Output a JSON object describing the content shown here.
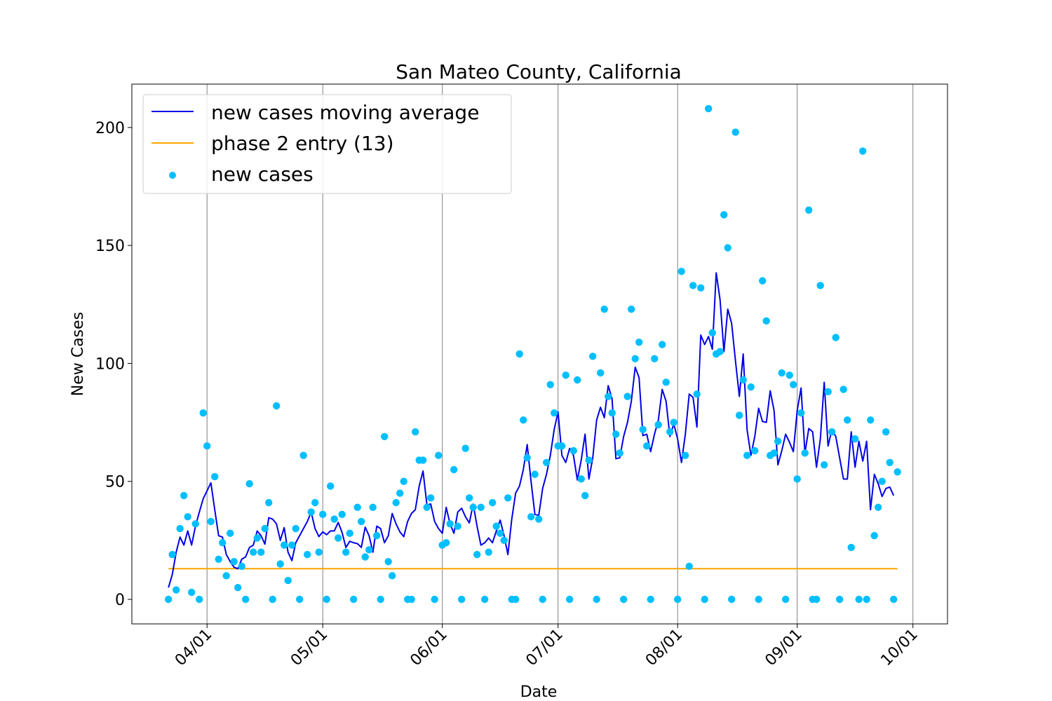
{
  "chart_data": {
    "type": "line",
    "title": "San Mateo County, California",
    "xlabel": "Date",
    "ylabel": "New Cases",
    "x_start": "2020-03-22",
    "ylim": [
      -10,
      218
    ],
    "yticks": [
      0,
      50,
      100,
      150,
      200
    ],
    "xticks": [
      {
        "label": "04/01",
        "date": "2020-04-01"
      },
      {
        "label": "05/01",
        "date": "2020-05-01"
      },
      {
        "label": "06/01",
        "date": "2020-06-01"
      },
      {
        "label": "07/01",
        "date": "2020-07-01"
      },
      {
        "label": "08/01",
        "date": "2020-08-01"
      },
      {
        "label": "09/01",
        "date": "2020-09-01"
      },
      {
        "label": "10/01",
        "date": "2020-10-01"
      }
    ],
    "grid": "vertical lines at x ticks",
    "legend": {
      "position": "upper-left",
      "entries": [
        "new cases moving average",
        "phase 2 entry (13)",
        "new cases"
      ]
    },
    "series": [
      {
        "name": "new cases",
        "kind": "scatter",
        "color": "#00bfff",
        "values": [
          0,
          19,
          4,
          30,
          44,
          35,
          3,
          32,
          0,
          79,
          65,
          33,
          52,
          17,
          24,
          10,
          28,
          16,
          5,
          14,
          0,
          49,
          20,
          26,
          20,
          30,
          41,
          0,
          82,
          15,
          23,
          8,
          23,
          30,
          0,
          61,
          19,
          37,
          41,
          20,
          36,
          0,
          48,
          34,
          26,
          36,
          20,
          28,
          0,
          39,
          33,
          18,
          21,
          39,
          27,
          0,
          69,
          16,
          10,
          41,
          45,
          50,
          0,
          0,
          71,
          59,
          59,
          39,
          43,
          0,
          61,
          23,
          24,
          32,
          55,
          31,
          0,
          64,
          43,
          39,
          19,
          39,
          0,
          20,
          41,
          31,
          28,
          25,
          43,
          0,
          0,
          104,
          76,
          60,
          35,
          53,
          34,
          0,
          58,
          91,
          79,
          65,
          65,
          95,
          0,
          63,
          93,
          51,
          44,
          59,
          103,
          0,
          96,
          123,
          86,
          79,
          70,
          62,
          0,
          86,
          123,
          102,
          109,
          72,
          65,
          0,
          102,
          74,
          108,
          92,
          71,
          75,
          0,
          139,
          61,
          14,
          133,
          87,
          132,
          0,
          208,
          113,
          104,
          105,
          163,
          149,
          0,
          198,
          78,
          93,
          61,
          90,
          63,
          0,
          135,
          118,
          61,
          62,
          67,
          96,
          0,
          95,
          91,
          51,
          79,
          62,
          165,
          0,
          0,
          133,
          57,
          88,
          71,
          111,
          0,
          89,
          76,
          22,
          68,
          0,
          190,
          0,
          76,
          27,
          39,
          50,
          71,
          58,
          0,
          54
        ]
      },
      {
        "name": "new cases moving average",
        "kind": "line",
        "color": "#0000e6",
        "values": [
          5,
          10.6,
          20,
          26.4,
          23,
          29,
          23,
          31,
          37,
          42.6,
          46,
          49.4,
          38,
          27,
          26.4,
          19,
          16,
          13.6,
          13,
          17,
          18,
          22,
          23,
          29,
          27,
          23.4,
          34.6,
          34,
          32,
          25,
          30.4,
          20,
          16.4,
          24,
          27,
          30,
          33,
          37,
          30,
          26.6,
          28.6,
          27.4,
          29,
          29,
          32.6,
          28.4,
          22,
          24.6,
          24,
          23.6,
          22,
          30.6,
          27,
          20,
          31,
          30,
          24,
          27,
          36.4,
          32,
          28.6,
          26.6,
          33,
          36.4,
          38,
          48,
          54.4,
          40,
          40.4,
          33,
          30,
          28,
          39,
          32,
          28,
          37,
          38.6,
          35,
          32.4,
          40.4,
          31,
          23,
          24,
          26,
          24,
          29,
          33.6,
          27,
          19,
          34,
          45,
          48,
          55,
          65.6,
          50,
          36,
          35.6,
          47,
          53,
          61,
          72,
          79.4,
          61,
          58,
          64,
          61,
          50.6,
          59,
          70,
          51,
          60,
          76,
          81.4,
          77,
          90.6,
          85,
          59.6,
          60,
          69,
          75,
          84,
          98.4,
          94,
          69.4,
          70,
          62.6,
          70,
          76,
          89,
          84,
          69,
          74.4,
          68,
          58,
          70,
          87,
          85.6,
          73,
          112,
          108,
          111.4,
          106,
          138.4,
          127,
          105,
          123,
          117,
          101,
          86,
          104,
          72,
          61,
          69,
          81,
          75.4,
          75,
          88.4,
          80,
          57,
          63,
          70,
          66.6,
          62.6,
          80,
          89.6,
          62,
          72.4,
          71,
          56,
          68,
          92,
          65,
          72,
          69,
          60,
          51,
          51,
          71,
          56,
          67,
          58.6,
          67,
          38,
          53,
          49,
          43.6,
          47,
          47.6,
          44
        ]
      },
      {
        "name": "phase 2 entry (13)",
        "kind": "hline",
        "color": "#ffa500",
        "value": 13
      }
    ]
  }
}
